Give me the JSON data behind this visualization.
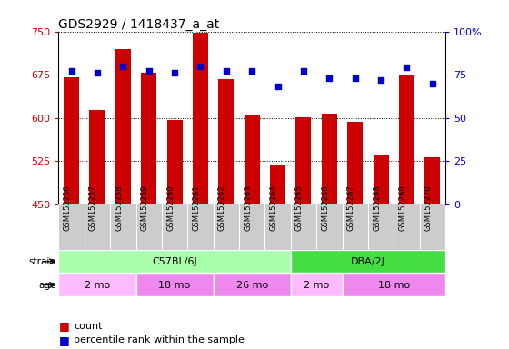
{
  "title": "GDS2929 / 1418437_a_at",
  "samples": [
    "GSM152256",
    "GSM152257",
    "GSM152258",
    "GSM152259",
    "GSM152260",
    "GSM152261",
    "GSM152262",
    "GSM152263",
    "GSM152264",
    "GSM152265",
    "GSM152266",
    "GSM152267",
    "GSM152268",
    "GSM152269",
    "GSM152270"
  ],
  "counts": [
    670,
    613,
    720,
    678,
    596,
    748,
    668,
    605,
    519,
    601,
    608,
    593,
    535,
    675,
    531
  ],
  "percentile_ranks": [
    77,
    76,
    80,
    77,
    76,
    80,
    77,
    77,
    68,
    77,
    73,
    73,
    72,
    79,
    70
  ],
  "ylim_left": [
    450,
    750
  ],
  "ylim_right": [
    0,
    100
  ],
  "yticks_left": [
    450,
    525,
    600,
    675,
    750
  ],
  "yticks_right": [
    0,
    25,
    50,
    75,
    100
  ],
  "bar_color": "#cc0000",
  "dot_color": "#0000cc",
  "bg_color": "#ffffff",
  "strain_groups": [
    {
      "label": "C57BL/6J",
      "start": 0,
      "end": 9,
      "color": "#aaffaa"
    },
    {
      "label": "DBA/2J",
      "start": 9,
      "end": 15,
      "color": "#44dd44"
    }
  ],
  "age_groups": [
    {
      "label": "2 mo",
      "start": 0,
      "end": 3,
      "color": "#ffbbff"
    },
    {
      "label": "18 mo",
      "start": 3,
      "end": 6,
      "color": "#ee88ee"
    },
    {
      "label": "26 mo",
      "start": 6,
      "end": 9,
      "color": "#ee88ee"
    },
    {
      "label": "2 mo",
      "start": 9,
      "end": 11,
      "color": "#ffbbff"
    },
    {
      "label": "18 mo",
      "start": 11,
      "end": 15,
      "color": "#ee88ee"
    }
  ],
  "left_axis_color": "#cc0000",
  "right_axis_color": "#0000cc",
  "label_area_color": "#cccccc",
  "legend_count_color": "#cc0000",
  "legend_dot_color": "#0000cc"
}
